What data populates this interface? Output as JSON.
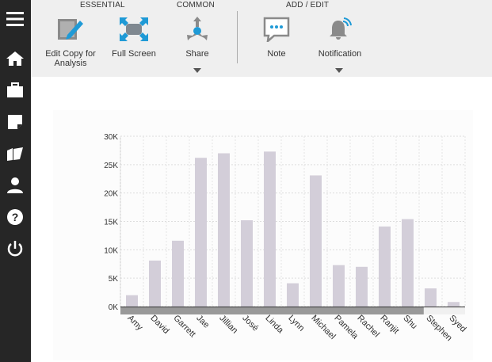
{
  "toolbar": {
    "groups": {
      "essential": "ESSENTIAL",
      "common": "COMMON",
      "add_edit": "ADD / EDIT"
    },
    "buttons": {
      "edit_copy": {
        "label": "Edit Copy for Analysis",
        "icon": "edit-copy-icon"
      },
      "full_screen": {
        "label": "Full Screen",
        "icon": "full-screen-icon"
      },
      "share": {
        "label": "Share",
        "icon": "share-icon"
      },
      "note": {
        "label": "Note",
        "icon": "note-icon"
      },
      "notification": {
        "label": "Notification",
        "icon": "notification-icon"
      }
    }
  },
  "sidebar": {
    "items": [
      "menu-icon",
      "home-icon",
      "briefcase-icon",
      "note-icon",
      "folder-icon",
      "user-icon",
      "help-icon",
      "power-icon"
    ]
  },
  "colors": {
    "bar": "#d3ced9",
    "sidebar": "#262626",
    "toolbar": "#efefef",
    "accent": "#1f9ad6",
    "scrollbar": "#999999"
  },
  "chart_data": {
    "type": "bar",
    "categories": [
      "Amy",
      "David",
      "Garrett",
      "Jae",
      "Jillian",
      "José",
      "Linda",
      "Lynn",
      "Michael",
      "Pamela",
      "Rachel",
      "Ranjit",
      "Shu",
      "Stephen",
      "Syed"
    ],
    "values": [
      2000,
      8100,
      11600,
      26200,
      27000,
      15200,
      27300,
      4100,
      23100,
      7300,
      7000,
      14100,
      15400,
      3200,
      800
    ],
    "yticks": [
      "0K",
      "5K",
      "10K",
      "15K",
      "20K",
      "25K",
      "30K"
    ],
    "ylim": [
      0,
      30000
    ],
    "grid": true,
    "title": "",
    "xlabel": "",
    "ylabel": ""
  }
}
